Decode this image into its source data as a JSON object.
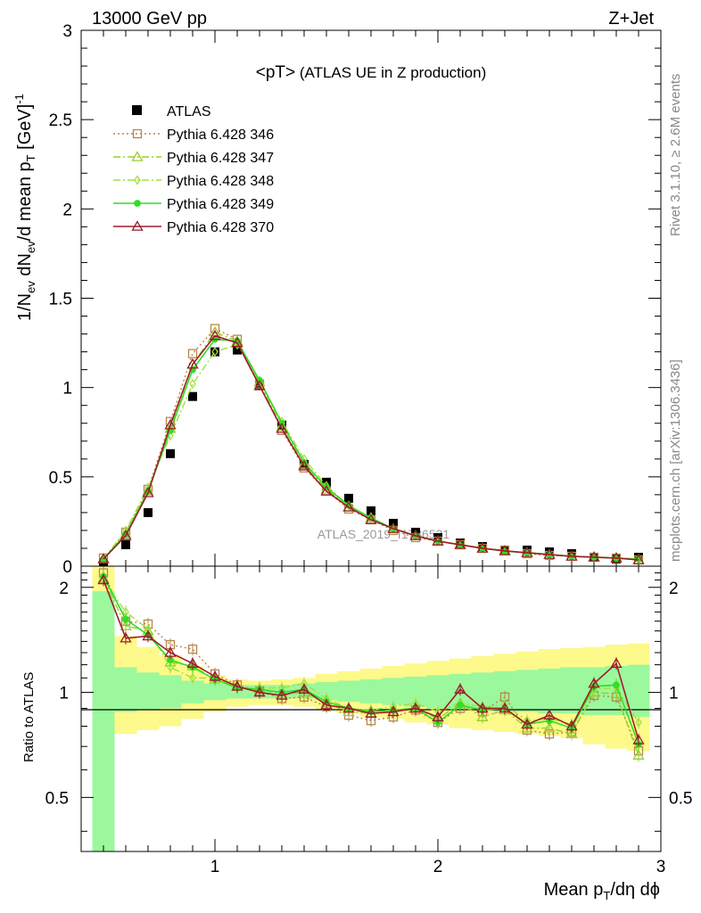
{
  "header": {
    "energy": "13000 GeV pp",
    "process": "Z+Jet",
    "plot_title": "<pT>",
    "plot_subtitle": "(ATLAS UE in Z production)"
  },
  "side_labels": {
    "rivet": "Rivet 3.1.10, ≥ 2.6M events",
    "mcplots": "mcplots.cern.ch [arXiv:1306.3436]"
  },
  "watermark": "ATLAS_2019_I1736531",
  "axes": {
    "y_main_label": "1/N",
    "y_main_sub1": "ev",
    "y_main_mid": " dN",
    "y_main_sub2": "ev",
    "y_main_mid2": "/d mean p",
    "y_main_sub3": "T",
    "y_main_unit": " [GeV]",
    "y_main_sup": "-1",
    "y_ratio_label": "Ratio to ATLAS",
    "x_label": "Mean p",
    "x_label_sub": "T",
    "x_label_rest": "/dη dϕ"
  },
  "chart_data": [
    {
      "type": "scatter",
      "panel": "main",
      "xlim": [
        0.4,
        3.0
      ],
      "ylim": [
        0,
        3
      ],
      "x_ticks": [
        "1",
        "2",
        "3"
      ],
      "y_ticks": [
        "0",
        "0.5",
        "1",
        "1.5",
        "2",
        "2.5",
        "3"
      ],
      "x": [
        0.5,
        0.6,
        0.7,
        0.8,
        0.9,
        1.0,
        1.1,
        1.2,
        1.3,
        1.4,
        1.5,
        1.6,
        1.7,
        1.8,
        1.9,
        2.0,
        2.1,
        2.2,
        2.3,
        2.4,
        2.5,
        2.6,
        2.7,
        2.8,
        2.9
      ],
      "series": [
        {
          "name": "ATLAS",
          "color": "#000000",
          "style": "data",
          "values": [
            0.02,
            0.12,
            0.3,
            0.63,
            0.95,
            1.2,
            1.21,
            1.01,
            0.79,
            0.57,
            0.47,
            0.38,
            0.31,
            0.24,
            0.19,
            0.16,
            0.13,
            0.11,
            0.09,
            0.09,
            0.08,
            0.07,
            0.05,
            0.04,
            0.05
          ]
        },
        {
          "name": "Pythia 6.428 346",
          "color": "#b8864b",
          "style": "dotted",
          "marker": "square",
          "values": [
            0.045,
            0.19,
            0.43,
            0.81,
            1.19,
            1.33,
            1.27,
            1.02,
            0.76,
            0.55,
            0.42,
            0.32,
            0.26,
            0.2,
            0.16,
            0.14,
            0.12,
            0.1,
            0.09,
            0.07,
            0.06,
            0.055,
            0.05,
            0.045,
            0.035
          ]
        },
        {
          "name": "Pythia 6.428 347",
          "color": "#9acd32",
          "style": "dashdot",
          "marker": "triangle",
          "values": [
            0.04,
            0.18,
            0.42,
            0.77,
            1.13,
            1.31,
            1.26,
            1.03,
            0.78,
            0.57,
            0.43,
            0.33,
            0.27,
            0.21,
            0.17,
            0.14,
            0.12,
            0.1,
            0.085,
            0.075,
            0.065,
            0.055,
            0.05,
            0.045,
            0.035
          ]
        },
        {
          "name": "Pythia 6.428 348",
          "color": "#a0e040",
          "style": "dashdot",
          "marker": "diamond",
          "values": [
            0.04,
            0.2,
            0.44,
            0.73,
            1.02,
            1.2,
            1.24,
            1.04,
            0.81,
            0.6,
            0.45,
            0.34,
            0.27,
            0.21,
            0.17,
            0.14,
            0.12,
            0.1,
            0.085,
            0.075,
            0.065,
            0.055,
            0.05,
            0.045,
            0.04
          ]
        },
        {
          "name": "Pythia 6.428 349",
          "color": "#33dd22",
          "style": "solid",
          "marker": "circle",
          "values": [
            0.04,
            0.18,
            0.42,
            0.76,
            1.1,
            1.27,
            1.26,
            1.04,
            0.8,
            0.58,
            0.44,
            0.34,
            0.27,
            0.21,
            0.17,
            0.14,
            0.12,
            0.1,
            0.085,
            0.075,
            0.065,
            0.055,
            0.05,
            0.045,
            0.04
          ]
        },
        {
          "name": "Pythia 6.428 370",
          "color": "#9b1c2a",
          "style": "solid",
          "marker": "triangle",
          "values": [
            0.04,
            0.17,
            0.41,
            0.79,
            1.13,
            1.29,
            1.25,
            1.01,
            0.77,
            0.56,
            0.42,
            0.33,
            0.26,
            0.21,
            0.17,
            0.14,
            0.12,
            0.1,
            0.085,
            0.075,
            0.065,
            0.055,
            0.05,
            0.045,
            0.035
          ]
        }
      ]
    },
    {
      "type": "line",
      "panel": "ratio",
      "xlim": [
        0.4,
        3.0
      ],
      "ylim": [
        0.35,
        2.3
      ],
      "x_ticks": [
        "1",
        "2",
        "3"
      ],
      "y_ticks": [
        "0.5",
        "1",
        "2"
      ],
      "bin_edges": [
        0.45,
        0.55,
        0.65,
        0.75,
        0.85,
        0.95,
        1.05,
        1.15,
        1.25,
        1.35,
        1.45,
        1.55,
        1.65,
        1.75,
        1.85,
        1.95,
        2.05,
        2.15,
        2.25,
        2.35,
        2.45,
        2.55,
        2.65,
        2.75,
        2.85,
        2.95
      ],
      "band_stat": [
        [
          0.3,
          1.95
        ],
        [
          0.88,
          1.18
        ],
        [
          0.89,
          1.14
        ],
        [
          0.9,
          1.12
        ],
        [
          0.93,
          1.08
        ],
        [
          0.95,
          1.06
        ],
        [
          0.96,
          1.05
        ],
        [
          0.96,
          1.05
        ],
        [
          0.96,
          1.05
        ],
        [
          0.96,
          1.06
        ],
        [
          0.95,
          1.07
        ],
        [
          0.94,
          1.08
        ],
        [
          0.93,
          1.09
        ],
        [
          0.92,
          1.1
        ],
        [
          0.91,
          1.11
        ],
        [
          0.9,
          1.12
        ],
        [
          0.89,
          1.13
        ],
        [
          0.89,
          1.14
        ],
        [
          0.88,
          1.15
        ],
        [
          0.88,
          1.16
        ],
        [
          0.87,
          1.17
        ],
        [
          0.87,
          1.18
        ],
        [
          0.86,
          1.18
        ],
        [
          0.86,
          1.19
        ],
        [
          0.85,
          1.2
        ]
      ],
      "band_total": [
        [
          0.3,
          2.3
        ],
        [
          0.76,
          1.45
        ],
        [
          0.78,
          1.35
        ],
        [
          0.8,
          1.28
        ],
        [
          0.84,
          1.19
        ],
        [
          0.88,
          1.12
        ],
        [
          0.91,
          1.09
        ],
        [
          0.92,
          1.08
        ],
        [
          0.92,
          1.09
        ],
        [
          0.91,
          1.1
        ],
        [
          0.89,
          1.13
        ],
        [
          0.87,
          1.15
        ],
        [
          0.85,
          1.17
        ],
        [
          0.84,
          1.19
        ],
        [
          0.82,
          1.21
        ],
        [
          0.81,
          1.23
        ],
        [
          0.79,
          1.25
        ],
        [
          0.78,
          1.27
        ],
        [
          0.77,
          1.29
        ],
        [
          0.76,
          1.31
        ],
        [
          0.75,
          1.33
        ],
        [
          0.74,
          1.34
        ],
        [
          0.71,
          1.35
        ],
        [
          0.69,
          1.37
        ],
        [
          0.68,
          1.38
        ]
      ],
      "reference": 1,
      "x": [
        0.5,
        0.6,
        0.7,
        0.8,
        0.9,
        1.0,
        1.1,
        1.2,
        1.3,
        1.4,
        1.5,
        1.6,
        1.7,
        1.8,
        1.9,
        2.0,
        2.1,
        2.2,
        2.3,
        2.4,
        2.5,
        2.6,
        2.7,
        2.8,
        2.9
      ],
      "series": [
        {
          "name": "Pythia 6.428 346",
          "values": [
            2.2,
            1.6,
            1.57,
            1.37,
            1.33,
            1.13,
            1.05,
            1.01,
            0.96,
            0.97,
            0.91,
            0.86,
            0.83,
            0.85,
            0.89,
            0.82,
            0.9,
            0.88,
            0.97,
            0.78,
            0.76,
            0.77,
            0.98,
            0.97,
            0.68
          ]
        },
        {
          "name": "Pythia 6.428 347",
          "values": [
            2.12,
            1.55,
            1.5,
            1.22,
            1.19,
            1.09,
            1.04,
            1.02,
            0.99,
            1.0,
            0.93,
            0.88,
            0.87,
            0.88,
            0.9,
            0.84,
            0.93,
            0.85,
            0.89,
            0.79,
            0.79,
            0.76,
            1.0,
            0.99,
            0.66
          ]
        },
        {
          "name": "Pythia 6.428 348",
          "values": [
            2.1,
            1.7,
            1.52,
            1.18,
            1.1,
            1.1,
            1.03,
            1.03,
            1.03,
            1.06,
            0.96,
            0.9,
            0.89,
            0.91,
            0.93,
            0.88,
            0.93,
            0.91,
            0.92,
            0.83,
            0.84,
            0.81,
            1.02,
            1.03,
            0.82
          ]
        },
        {
          "name": "Pythia 6.428 349",
          "values": [
            2.15,
            1.62,
            1.46,
            1.24,
            1.18,
            1.09,
            1.03,
            1.02,
            1.0,
            1.02,
            0.94,
            0.9,
            0.88,
            0.89,
            0.9,
            0.82,
            0.92,
            0.89,
            0.9,
            0.81,
            0.83,
            0.79,
            1.04,
            1.05,
            0.71
          ]
        },
        {
          "name": "Pythia 6.428 370",
          "values": [
            2.1,
            1.43,
            1.45,
            1.3,
            1.21,
            1.11,
            1.04,
            1.0,
            0.98,
            1.02,
            0.92,
            0.9,
            0.87,
            0.88,
            0.9,
            0.85,
            1.02,
            0.9,
            0.9,
            0.81,
            0.86,
            0.8,
            1.06,
            1.21,
            0.73
          ]
        }
      ]
    }
  ]
}
